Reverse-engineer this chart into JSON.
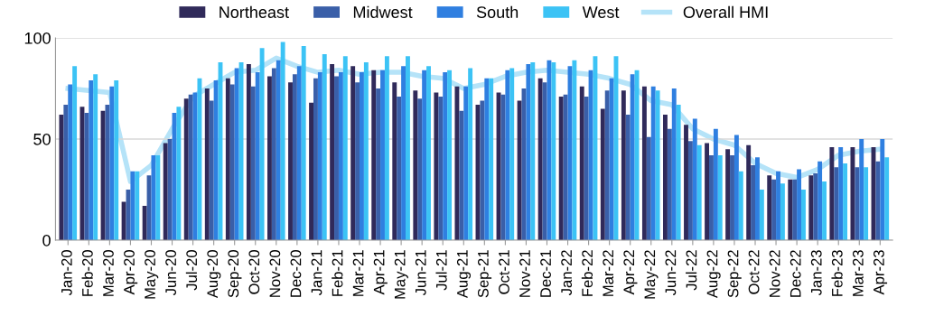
{
  "chart_data": {
    "type": "bar",
    "categories": [
      "Jan-20",
      "Feb-20",
      "Mar-20",
      "Apr-20",
      "May-20",
      "Jun-20",
      "Jul-20",
      "Aug-20",
      "Sep-20",
      "Oct-20",
      "Nov-20",
      "Dec-20",
      "Jan-21",
      "Feb-21",
      "Mar-21",
      "Apr-21",
      "May-21",
      "Jun-21",
      "Jul-21",
      "Aug-21",
      "Sep-21",
      "Oct-21",
      "Nov-21",
      "Dec-21",
      "Jan-22",
      "Feb-22",
      "Mar-22",
      "Apr-22",
      "May-22",
      "Jun-22",
      "Jul-22",
      "Aug-22",
      "Sep-22",
      "Oct-22",
      "Nov-22",
      "Dec-22",
      "Jan-23",
      "Feb-23",
      "Mar-23",
      "Apr-23"
    ],
    "series": [
      {
        "name": "Northeast",
        "color": "#302a5a",
        "values": [
          62,
          66,
          64,
          19,
          17,
          48,
          70,
          75,
          80,
          87,
          81,
          78,
          68,
          87,
          86,
          84,
          78,
          74,
          73,
          76,
          67,
          73,
          69,
          80,
          71,
          76,
          65,
          74,
          76,
          62,
          57,
          48,
          45,
          47,
          32,
          30,
          32,
          46,
          46,
          46
        ]
      },
      {
        "name": "Midwest",
        "color": "#3a5fa8",
        "values": [
          67,
          63,
          67,
          25,
          32,
          50,
          72,
          69,
          77,
          76,
          85,
          82,
          80,
          81,
          78,
          75,
          71,
          70,
          71,
          64,
          69,
          72,
          75,
          78,
          72,
          71,
          74,
          62,
          51,
          55,
          49,
          42,
          42,
          37,
          30,
          30,
          33,
          36,
          36,
          39
        ]
      },
      {
        "name": "South",
        "color": "#2f7fe0",
        "values": [
          77,
          79,
          76,
          34,
          42,
          63,
          73,
          79,
          85,
          83,
          89,
          86,
          83,
          83,
          83,
          84,
          86,
          84,
          83,
          76,
          80,
          84,
          87,
          89,
          86,
          84,
          80,
          82,
          76,
          75,
          60,
          55,
          52,
          41,
          34,
          35,
          39,
          46,
          50,
          50
        ]
      },
      {
        "name": "West",
        "color": "#3cc3f5",
        "values": [
          86,
          82,
          79,
          34,
          42,
          66,
          80,
          88,
          88,
          95,
          98,
          96,
          92,
          91,
          88,
          91,
          91,
          86,
          84,
          85,
          80,
          85,
          88,
          88,
          89,
          91,
          91,
          84,
          74,
          67,
          47,
          42,
          34,
          25,
          28,
          25,
          29,
          38,
          36,
          41
        ]
      },
      {
        "name": "Overall HMI",
        "type": "line",
        "color": "#b5e3f8",
        "values": [
          75,
          74,
          73,
          29,
          37,
          55,
          71,
          77,
          83,
          84,
          90,
          86,
          83,
          84,
          82,
          83,
          83,
          81,
          80,
          75,
          77,
          81,
          83,
          84,
          83,
          82,
          80,
          77,
          69,
          67,
          55,
          50,
          47,
          38,
          33,
          31,
          35,
          42,
          44,
          45
        ]
      }
    ],
    "ylim": [
      0,
      100
    ],
    "yticks": [
      0,
      50,
      100
    ],
    "grid": "y",
    "legend": "top"
  }
}
